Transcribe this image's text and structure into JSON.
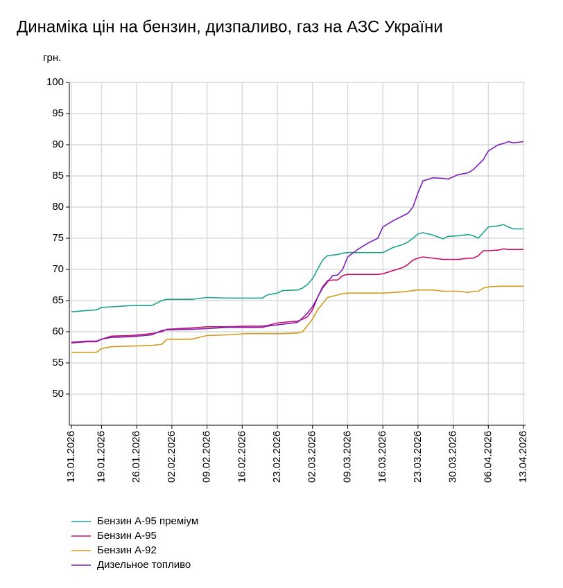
{
  "chart_data": {
    "type": "line",
    "title": "Динаміка цін на бензин, дизпаливо, газ на АЗС України",
    "y_label": "грн.",
    "x": [
      "13.01.2026",
      "16.01.2026",
      "18.01.2026",
      "19.01.2026",
      "21.01.2026",
      "25.01.2026",
      "29.01.2026",
      "31.01.2026",
      "01.02.2026",
      "06.02.2026",
      "09.02.2026",
      "13.02.2026",
      "17.02.2026",
      "20.02.2026",
      "21.02.2026",
      "23.02.2026",
      "24.02.2026",
      "27.02.2026",
      "28.02.2026",
      "01.03.2026",
      "02.03.2026",
      "03.03.2026",
      "04.03.2026",
      "05.03.2026",
      "06.03.2026",
      "07.03.2026",
      "08.03.2026",
      "09.03.2026",
      "11.03.2026",
      "13.03.2026",
      "15.03.2026",
      "16.03.2026",
      "18.03.2026",
      "20.03.2026",
      "21.03.2026",
      "22.03.2026",
      "23.03.2026",
      "24.03.2026",
      "26.03.2026",
      "28.03.2026",
      "29.03.2026",
      "31.03.2026",
      "02.04.2026",
      "03.04.2026",
      "04.04.2026",
      "05.04.2026",
      "06.04.2026",
      "08.04.2026",
      "09.04.2026",
      "10.04.2026",
      "11.04.2026",
      "13.04.2026"
    ],
    "series": [
      {
        "name": "Бензин А-95 преміум",
        "color": "#1aa38a",
        "values": [
          63.2,
          63.4,
          63.5,
          63.9,
          64.0,
          64.2,
          64.2,
          65.0,
          65.2,
          65.2,
          65.5,
          65.4,
          65.4,
          65.4,
          65.9,
          66.2,
          66.6,
          66.7,
          67.0,
          67.6,
          68.5,
          70.0,
          71.5,
          72.2,
          72.3,
          72.4,
          72.6,
          72.7,
          72.7,
          72.7,
          72.7,
          72.7,
          73.5,
          74.0,
          74.4,
          75.0,
          75.7,
          75.9,
          75.5,
          74.9,
          75.3,
          75.4,
          75.6,
          75.4,
          75.0,
          75.9,
          76.8,
          77.0,
          77.2,
          76.8,
          76.5,
          76.5
        ]
      },
      {
        "name": "Бензин А-95",
        "color": "#c8106a",
        "values": [
          58.2,
          58.4,
          58.4,
          58.8,
          59.3,
          59.4,
          59.7,
          60.0,
          60.4,
          60.6,
          60.8,
          60.8,
          60.9,
          60.9,
          61.0,
          61.4,
          61.5,
          61.7,
          62.0,
          62.4,
          63.5,
          65.5,
          67.2,
          68.2,
          68.3,
          68.3,
          69.0,
          69.2,
          69.2,
          69.2,
          69.2,
          69.3,
          69.8,
          70.3,
          70.8,
          71.5,
          71.8,
          72.0,
          71.8,
          71.6,
          71.6,
          71.6,
          71.8,
          71.8,
          72.2,
          73.0,
          73.0,
          73.1,
          73.3,
          73.2,
          73.2,
          73.2
        ]
      },
      {
        "name": "Бензин А-92",
        "color": "#d39b1c",
        "values": [
          56.7,
          56.7,
          56.7,
          57.3,
          57.6,
          57.7,
          57.8,
          58.0,
          58.8,
          58.8,
          59.4,
          59.5,
          59.7,
          59.7,
          59.7,
          59.7,
          59.7,
          59.8,
          60.0,
          61.0,
          62.0,
          63.5,
          64.5,
          65.5,
          65.7,
          65.9,
          66.1,
          66.2,
          66.2,
          66.2,
          66.2,
          66.2,
          66.3,
          66.4,
          66.5,
          66.6,
          66.7,
          66.7,
          66.7,
          66.5,
          66.5,
          66.5,
          66.3,
          66.5,
          66.5,
          67.0,
          67.2,
          67.3,
          67.3,
          67.3,
          67.3,
          67.3
        ]
      },
      {
        "name": "Дизельное топливо",
        "color": "#7a1fb8",
        "values": [
          58.3,
          58.5,
          58.5,
          58.8,
          59.1,
          59.2,
          59.5,
          60.2,
          60.3,
          60.4,
          60.5,
          60.7,
          60.7,
          60.7,
          60.9,
          61.1,
          61.2,
          61.5,
          62.2,
          63.0,
          64.0,
          65.5,
          67.0,
          68.0,
          69.0,
          69.1,
          70.0,
          72.0,
          73.2,
          74.2,
          75.0,
          76.8,
          77.8,
          78.6,
          79.0,
          80.0,
          82.3,
          84.2,
          84.7,
          84.6,
          84.5,
          85.2,
          85.5,
          86.0,
          86.8,
          87.6,
          89.0,
          90.0,
          90.2,
          90.5,
          90.3,
          90.5
        ]
      }
    ],
    "xlim": [
      "13.01.2026",
      "13.04.2026"
    ],
    "xticks": [
      "13.01.2026",
      "19.01.2026",
      "26.01.2026",
      "02.02.2026",
      "09.02.2026",
      "16.02.2026",
      "23.02.2026",
      "02.03.2026",
      "09.03.2026",
      "16.03.2026",
      "23.03.2026",
      "30.03.2026",
      "06.04.2026",
      "13.04.2026"
    ],
    "ylim": [
      45,
      100
    ],
    "yticks": [
      50,
      55,
      60,
      65,
      70,
      75,
      80,
      85,
      90,
      95,
      100
    ],
    "grid": true
  }
}
